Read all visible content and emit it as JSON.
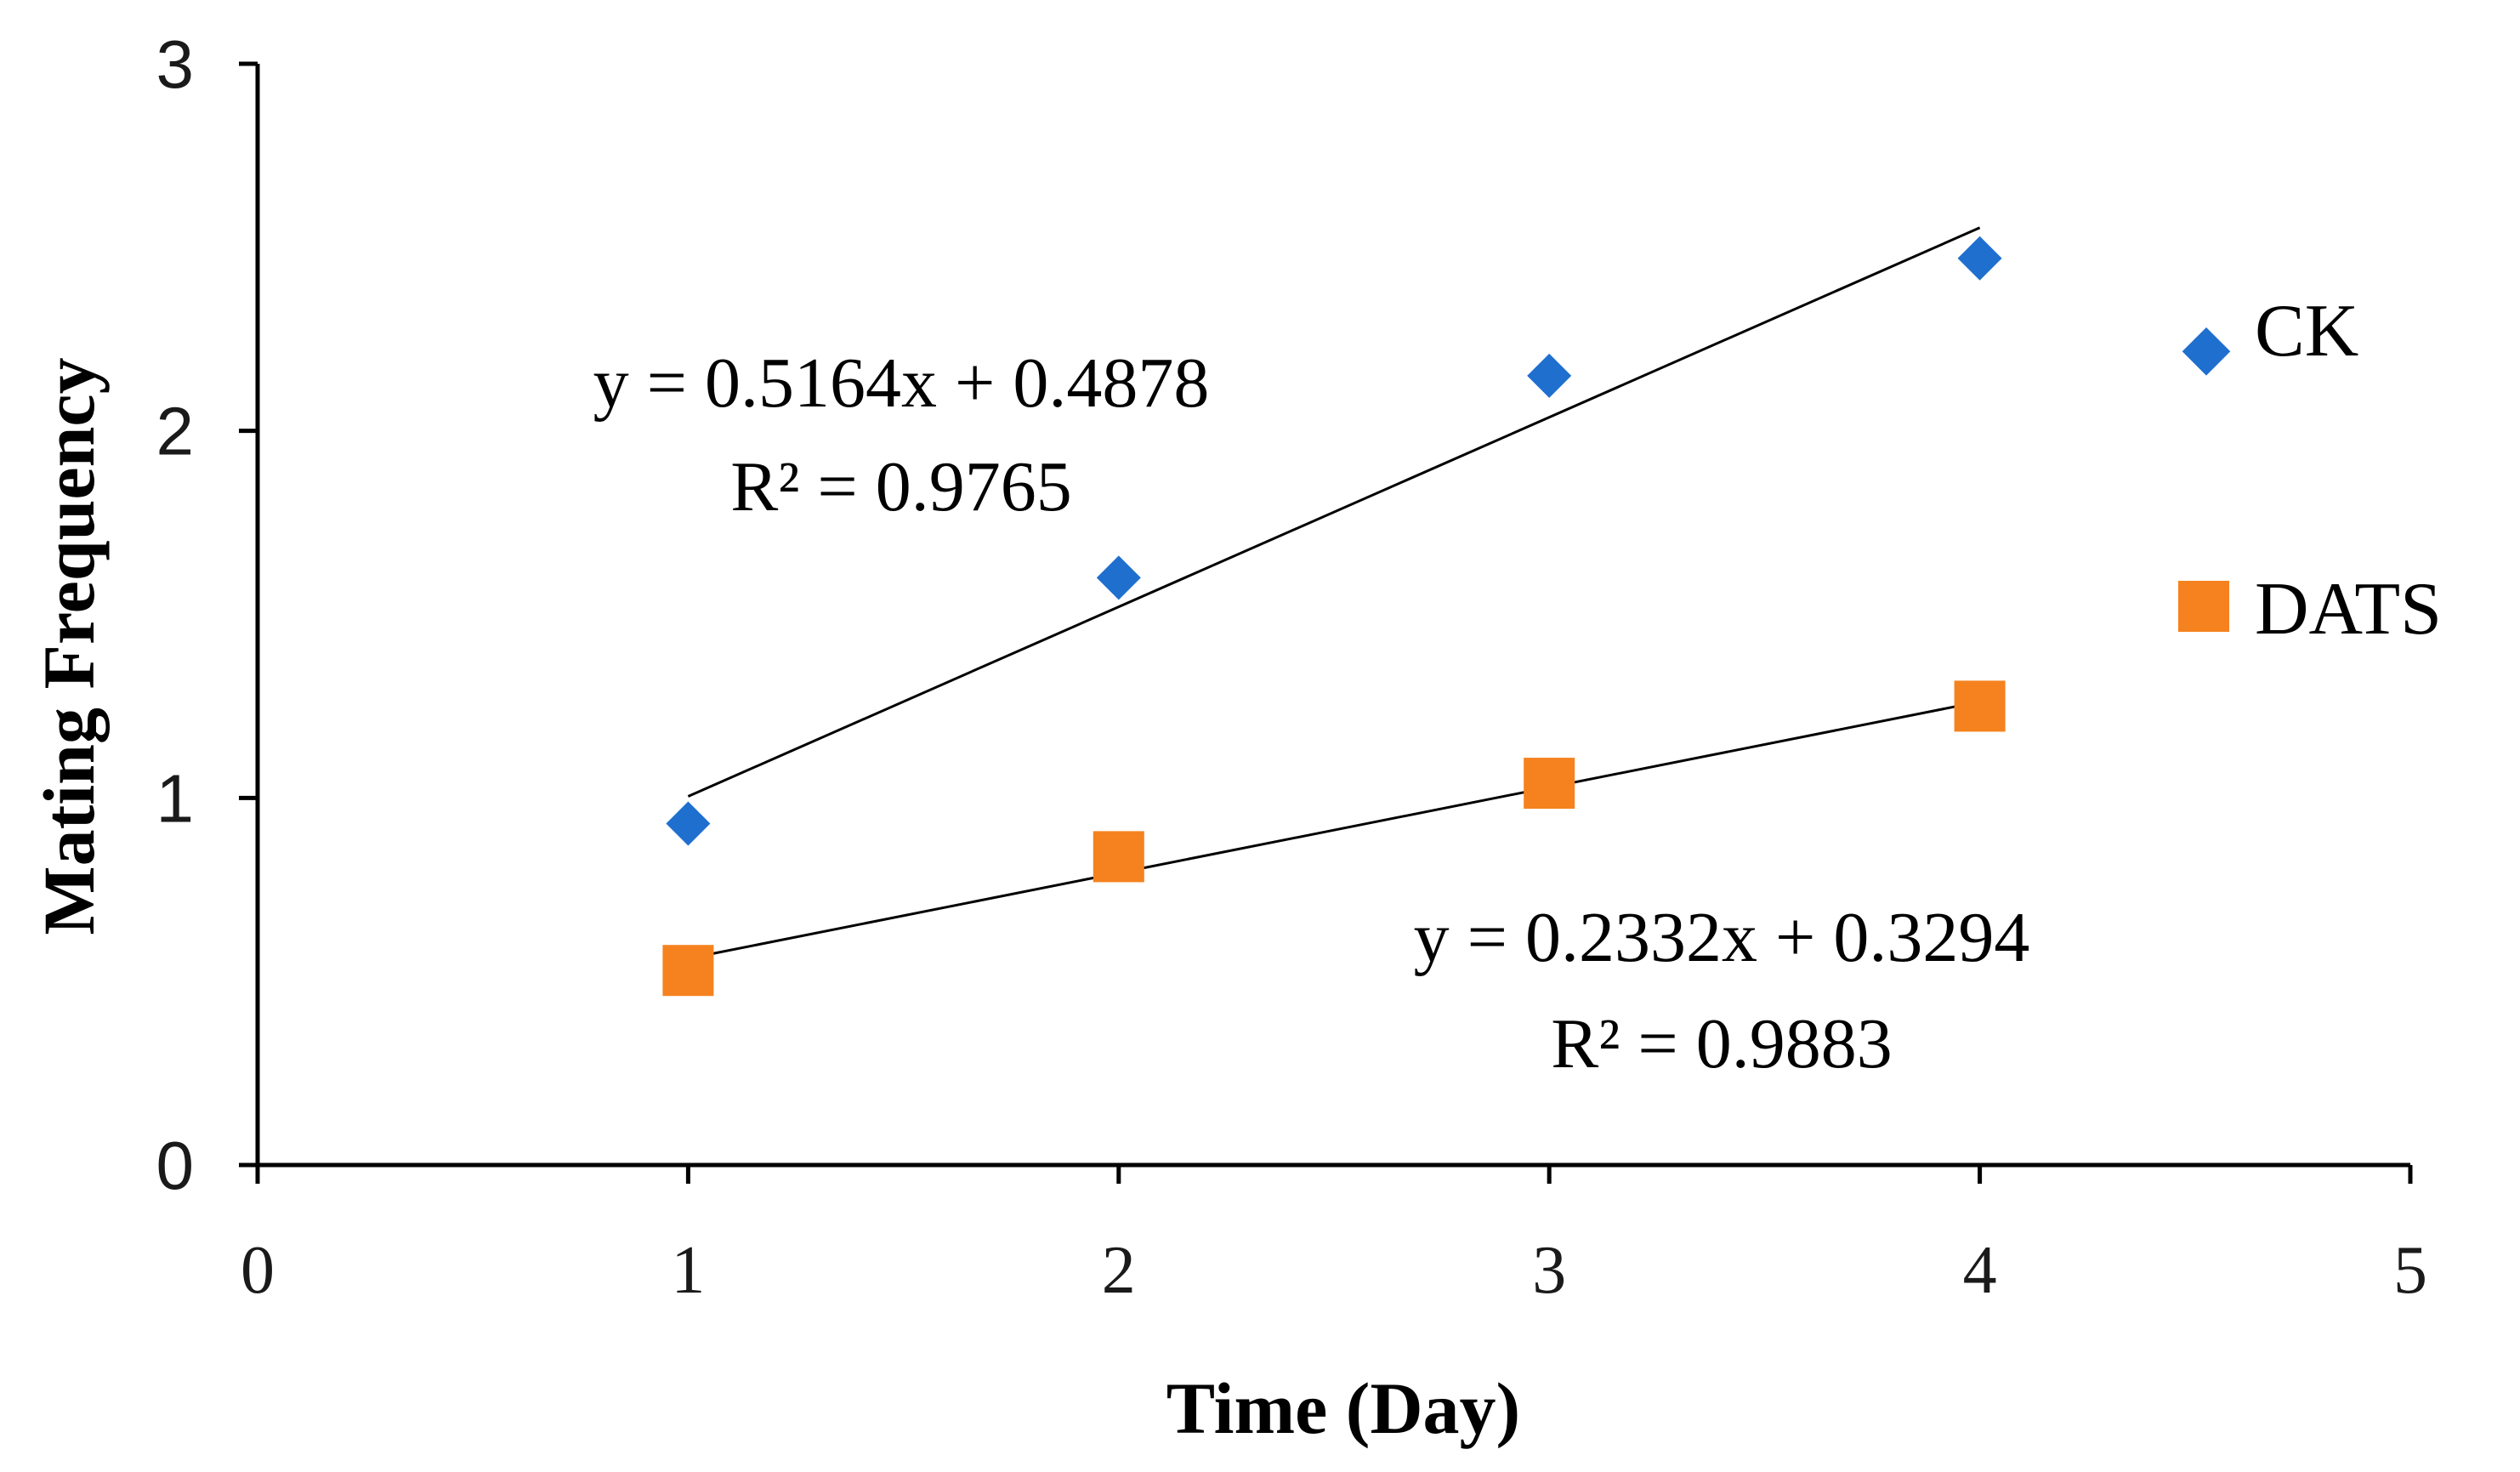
{
  "chart_data": {
    "type": "scatter",
    "title": "",
    "xlabel": "Time (Day)",
    "ylabel": "Mating Frequency",
    "xlim": [
      0,
      5
    ],
    "ylim": [
      0,
      3
    ],
    "x_ticks": [
      "0",
      "1",
      "2",
      "3",
      "4",
      "5"
    ],
    "y_ticks": [
      "0",
      "1",
      "2",
      "3"
    ],
    "grid": false,
    "legend_position": "right",
    "series": [
      {
        "name": "CK",
        "marker": "diamond",
        "color": "#1f6fcf",
        "x": [
          1,
          2,
          3,
          4
        ],
        "values": [
          0.93,
          1.6,
          2.15,
          2.47
        ],
        "trendline": {
          "slope": 0.5164,
          "intercept": 0.4878,
          "x_range": [
            1,
            4
          ]
        },
        "equation": "y = 0.5164x + 0.4878",
        "r_squared": "R² = 0.9765"
      },
      {
        "name": "DATS",
        "marker": "square",
        "color": "#f5821f",
        "x": [
          1,
          2,
          3,
          4
        ],
        "values": [
          0.53,
          0.84,
          1.04,
          1.25
        ],
        "trendline": {
          "slope": 0.2332,
          "intercept": 0.3294,
          "x_range": [
            1,
            4
          ]
        },
        "equation": "y = 0.2332x + 0.3294",
        "r_squared": "R² = 0.9883"
      }
    ]
  }
}
